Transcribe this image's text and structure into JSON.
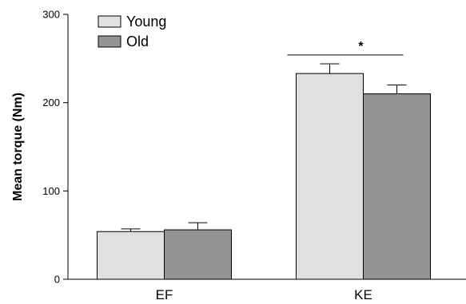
{
  "chart_data": {
    "type": "bar",
    "title": "",
    "xlabel": "",
    "ylabel": "Mean torque (Nm)",
    "ylim": [
      0,
      300
    ],
    "yticks": [
      0,
      100,
      200,
      300
    ],
    "categories": [
      "EF",
      "KE"
    ],
    "series": [
      {
        "name": "Young",
        "values": [
          54,
          233
        ],
        "errors": [
          3,
          11
        ],
        "color": "#e0e0e0"
      },
      {
        "name": "Old",
        "values": [
          56,
          210
        ],
        "errors": [
          8,
          10
        ],
        "color": "#949494"
      }
    ],
    "legend_position": "top-left",
    "grid": false,
    "annotations": [
      {
        "text": "*",
        "category": "KE",
        "meaning": "significance bracket between Young and Old"
      }
    ]
  }
}
